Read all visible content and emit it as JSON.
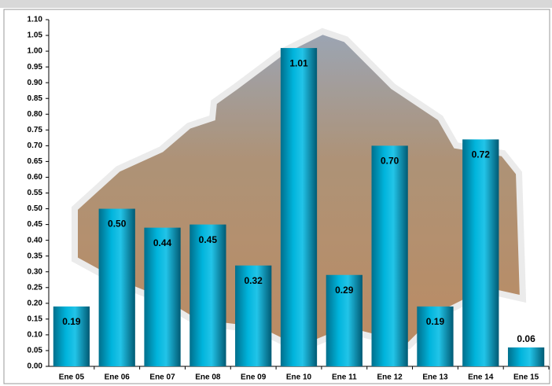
{
  "chart_data": {
    "type": "bar",
    "categories": [
      "Ene 05",
      "Ene 06",
      "Ene 07",
      "Ene 08",
      "Ene 09",
      "Ene 10",
      "Ene 11",
      "Ene 12",
      "Ene 13",
      "Ene 14",
      "Ene 15"
    ],
    "values": [
      0.19,
      0.5,
      0.44,
      0.45,
      0.32,
      1.01,
      0.29,
      0.7,
      0.19,
      0.72,
      0.06
    ],
    "value_labels": [
      "0.19",
      "0.50",
      "0.44",
      "0.45",
      "0.32",
      "1.01",
      "0.29",
      "0.70",
      "0.19",
      "0.72",
      "0.06"
    ],
    "color": "#00b4dc",
    "ylim": [
      0,
      1.1
    ],
    "yticks": [
      {
        "value": 0,
        "label": "0.00"
      },
      {
        "value": 0.05,
        "label": "0.05"
      },
      {
        "value": 0.1,
        "label": "0.10"
      },
      {
        "value": 0.15,
        "label": "0.15"
      },
      {
        "value": 0.2,
        "label": "0.20"
      },
      {
        "value": 0.25,
        "label": "0.25"
      },
      {
        "value": 0.3,
        "label": "0.30"
      },
      {
        "value": 0.35,
        "label": "0.35"
      },
      {
        "value": 0.4,
        "label": "0.40"
      },
      {
        "value": 0.45,
        "label": "0.45"
      },
      {
        "value": 0.5,
        "label": "0.50"
      },
      {
        "value": 0.55,
        "label": "0.55"
      },
      {
        "value": 0.6,
        "label": "0.60"
      },
      {
        "value": 0.65,
        "label": "0.65"
      },
      {
        "value": 0.7,
        "label": "0.70"
      },
      {
        "value": 0.75,
        "label": "0.75"
      },
      {
        "value": 0.8,
        "label": "0.80"
      },
      {
        "value": 0.85,
        "label": "0.85"
      },
      {
        "value": 0.9,
        "label": "0.90"
      },
      {
        "value": 0.95,
        "label": "0.95"
      },
      {
        "value": 1,
        "label": "1.00"
      },
      {
        "value": 1.05,
        "label": "1.05"
      },
      {
        "value": 1.1,
        "label": "1.10"
      }
    ]
  }
}
